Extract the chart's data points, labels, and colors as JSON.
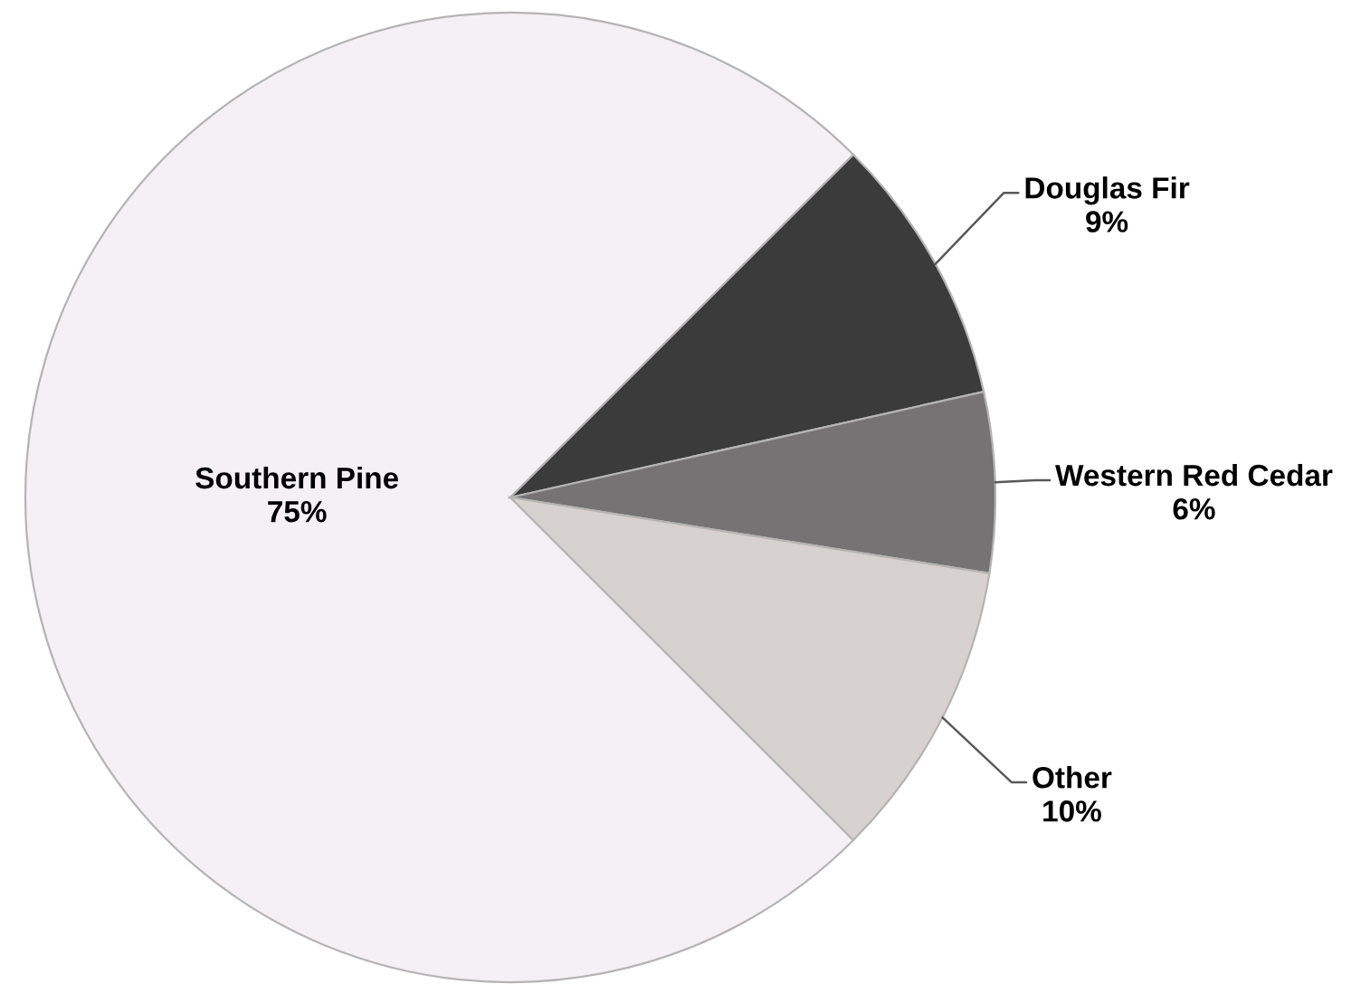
{
  "chart_data": {
    "type": "pie",
    "categories": [
      "Southern Pine",
      "Douglas Fir",
      "Western Red Cedar",
      "Other"
    ],
    "values": [
      75,
      9,
      6,
      10
    ],
    "colors": [
      "#f4f0f4",
      "#3b3b3b",
      "#767375",
      "#d7d1cf"
    ],
    "value_labels": [
      "75%",
      "9%",
      "6%",
      "10%"
    ]
  }
}
